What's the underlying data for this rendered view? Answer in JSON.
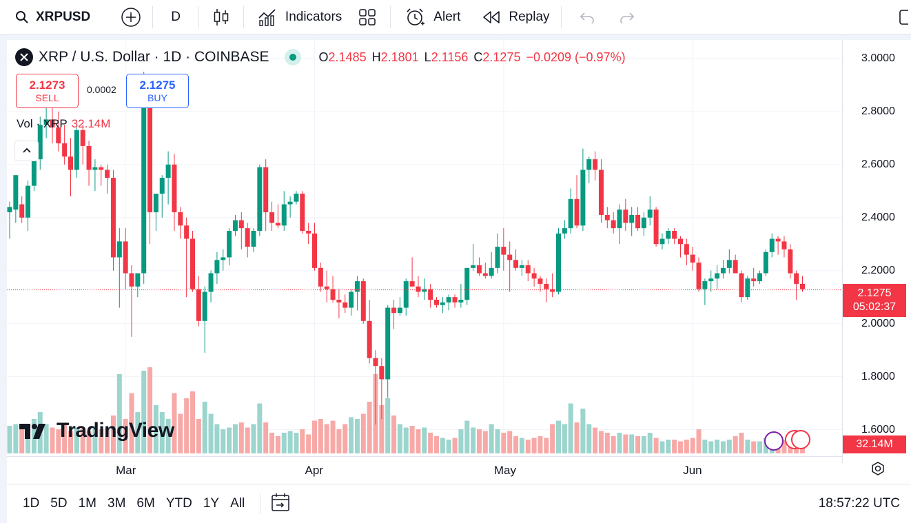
{
  "topbar": {
    "symbol": "XRPUSD",
    "interval": "D",
    "indicators_label": "Indicators",
    "alert_label": "Alert",
    "replay_label": "Replay"
  },
  "legend": {
    "title": "XRP / U.S. Dollar · 1D · COINBASE",
    "o_label": "O",
    "o": "2.1485",
    "h_label": "H",
    "h": "2.1801",
    "l_label": "L",
    "l": "2.1156",
    "c_label": "C",
    "c": "2.1275",
    "change": "−0.0209 (−0.97%)"
  },
  "trade": {
    "sell_price": "2.1273",
    "sell_label": "SELL",
    "spread": "0.0002",
    "buy_price": "2.1275",
    "buy_label": "BUY"
  },
  "volume": {
    "label": "Vol · XRP",
    "value": "32.14M"
  },
  "price_axis": {
    "labels": [
      "3.0000",
      "2.8000",
      "2.6000",
      "2.4000",
      "2.2000",
      "2.0000",
      "1.8000",
      "1.6000"
    ],
    "last_price": "2.1275",
    "countdown": "05:02:37",
    "volume_tag": "32.14M"
  },
  "time_axis": {
    "labels": [
      "Mar",
      "Apr",
      "May",
      "Jun"
    ]
  },
  "branding": "TradingView",
  "bottombar": {
    "ranges": [
      "1D",
      "5D",
      "1M",
      "3M",
      "6M",
      "YTD",
      "1Y",
      "All"
    ],
    "clock": "18:57:22 UTC"
  },
  "colors": {
    "up": "#089981",
    "down": "#f23645",
    "up_vol": "#9bd5cd",
    "down_vol": "#f7a9a7"
  },
  "chart_data": {
    "type": "candlestick",
    "ylim": [
      1.5,
      3.07
    ],
    "candles": [
      [
        2.42,
        2.46,
        2.32,
        2.44
      ],
      [
        2.43,
        2.56,
        2.38,
        2.56
      ],
      [
        2.45,
        2.48,
        2.38,
        2.4
      ],
      [
        2.4,
        2.54,
        2.35,
        2.52
      ],
      [
        2.52,
        2.66,
        2.5,
        2.62
      ],
      [
        2.62,
        2.78,
        2.58,
        2.75
      ],
      [
        2.75,
        2.82,
        2.7,
        2.77
      ],
      [
        2.77,
        2.82,
        2.68,
        2.74
      ],
      [
        2.74,
        2.8,
        2.65,
        2.68
      ],
      [
        2.68,
        2.75,
        2.6,
        2.63
      ],
      [
        2.63,
        2.7,
        2.48,
        2.58
      ],
      [
        2.58,
        2.74,
        2.55,
        2.73
      ],
      [
        2.73,
        2.75,
        2.6,
        2.67
      ],
      [
        2.67,
        2.69,
        2.52,
        2.58
      ],
      [
        2.58,
        2.62,
        2.5,
        2.59
      ],
      [
        2.59,
        2.6,
        2.52,
        2.58
      ],
      [
        2.58,
        2.6,
        2.49,
        2.55
      ],
      [
        2.55,
        2.58,
        2.2,
        2.25
      ],
      [
        2.25,
        2.36,
        2.06,
        2.31
      ],
      [
        2.31,
        2.36,
        2.13,
        2.19
      ],
      [
        2.19,
        2.22,
        1.95,
        2.14
      ],
      [
        2.14,
        2.18,
        2.1,
        2.19
      ],
      [
        2.19,
        2.95,
        2.15,
        2.93
      ],
      [
        2.93,
        2.94,
        2.3,
        2.42
      ],
      [
        2.42,
        2.48,
        2.35,
        2.49
      ],
      [
        2.49,
        2.56,
        2.4,
        2.55
      ],
      [
        2.55,
        2.65,
        2.45,
        2.6
      ],
      [
        2.6,
        2.64,
        2.35,
        2.42
      ],
      [
        2.42,
        2.44,
        2.32,
        2.37
      ],
      [
        2.37,
        2.4,
        2.1,
        2.32
      ],
      [
        2.32,
        2.35,
        2.12,
        2.13
      ],
      [
        2.13,
        2.18,
        1.99,
        2.01
      ],
      [
        2.01,
        2.14,
        1.89,
        2.12
      ],
      [
        2.12,
        2.2,
        2.08,
        2.19
      ],
      [
        2.19,
        2.27,
        2.15,
        2.24
      ],
      [
        2.24,
        2.28,
        2.2,
        2.25
      ],
      [
        2.25,
        2.36,
        2.22,
        2.35
      ],
      [
        2.35,
        2.41,
        2.33,
        2.39
      ],
      [
        2.39,
        2.42,
        2.28,
        2.36
      ],
      [
        2.36,
        2.38,
        2.25,
        2.29
      ],
      [
        2.29,
        2.36,
        2.27,
        2.35
      ],
      [
        2.35,
        2.6,
        2.33,
        2.59
      ],
      [
        2.59,
        2.62,
        2.35,
        2.42
      ],
      [
        2.42,
        2.46,
        2.35,
        2.38
      ],
      [
        2.38,
        2.45,
        2.36,
        2.37
      ],
      [
        2.37,
        2.5,
        2.35,
        2.45
      ],
      [
        2.45,
        2.48,
        2.4,
        2.46
      ],
      [
        2.46,
        2.5,
        2.45,
        2.49
      ],
      [
        2.49,
        2.5,
        2.34,
        2.35
      ],
      [
        2.35,
        2.38,
        2.3,
        2.34
      ],
      [
        2.34,
        2.38,
        2.2,
        2.21
      ],
      [
        2.21,
        2.23,
        2.12,
        2.14
      ],
      [
        2.14,
        2.2,
        2.08,
        2.13
      ],
      [
        2.13,
        2.18,
        2.08,
        2.09
      ],
      [
        2.09,
        2.13,
        2.02,
        2.08
      ],
      [
        2.08,
        2.11,
        2.04,
        2.06
      ],
      [
        2.06,
        2.13,
        2.03,
        2.12
      ],
      [
        2.12,
        2.18,
        2.05,
        2.16
      ],
      [
        2.16,
        2.17,
        2.0,
        2.01
      ],
      [
        2.01,
        2.09,
        1.85,
        1.87
      ],
      [
        1.87,
        1.9,
        1.62,
        1.84
      ],
      [
        1.84,
        1.87,
        1.64,
        1.79
      ],
      [
        1.79,
        2.07,
        1.72,
        2.06
      ],
      [
        2.06,
        2.09,
        1.98,
        2.04
      ],
      [
        2.04,
        2.1,
        2.03,
        2.06
      ],
      [
        2.06,
        2.17,
        2.03,
        2.16
      ],
      [
        2.16,
        2.25,
        2.14,
        2.14
      ],
      [
        2.14,
        2.18,
        2.1,
        2.12
      ],
      [
        2.12,
        2.17,
        2.09,
        2.13
      ],
      [
        2.13,
        2.15,
        2.06,
        2.09
      ],
      [
        2.09,
        2.1,
        2.06,
        2.07
      ],
      [
        2.07,
        2.1,
        2.04,
        2.08
      ],
      [
        2.08,
        2.11,
        2.05,
        2.1
      ],
      [
        2.1,
        2.11,
        2.06,
        2.08
      ],
      [
        2.08,
        2.15,
        2.06,
        2.09
      ],
      [
        2.09,
        2.21,
        2.07,
        2.21
      ],
      [
        2.21,
        2.3,
        2.2,
        2.22
      ],
      [
        2.22,
        2.25,
        2.18,
        2.19
      ],
      [
        2.19,
        2.23,
        2.17,
        2.18
      ],
      [
        2.18,
        2.27,
        2.17,
        2.21
      ],
      [
        2.21,
        2.34,
        2.19,
        2.29
      ],
      [
        2.29,
        2.36,
        2.2,
        2.26
      ],
      [
        2.26,
        2.31,
        2.12,
        2.24
      ],
      [
        2.24,
        2.28,
        2.2,
        2.21
      ],
      [
        2.21,
        2.24,
        2.18,
        2.22
      ],
      [
        2.22,
        2.24,
        2.16,
        2.19
      ],
      [
        2.19,
        2.21,
        2.14,
        2.17
      ],
      [
        2.17,
        2.18,
        2.12,
        2.15
      ],
      [
        2.15,
        2.17,
        2.08,
        2.13
      ],
      [
        2.13,
        2.19,
        2.1,
        2.12
      ],
      [
        2.12,
        2.36,
        2.11,
        2.34
      ],
      [
        2.34,
        2.39,
        2.32,
        2.36
      ],
      [
        2.36,
        2.51,
        2.34,
        2.47
      ],
      [
        2.47,
        2.56,
        2.36,
        2.37
      ],
      [
        2.37,
        2.66,
        2.35,
        2.58
      ],
      [
        2.58,
        2.63,
        2.53,
        2.62
      ],
      [
        2.62,
        2.65,
        2.54,
        2.58
      ],
      [
        2.58,
        2.62,
        2.38,
        2.41
      ],
      [
        2.41,
        2.44,
        2.36,
        2.39
      ],
      [
        2.39,
        2.42,
        2.34,
        2.36
      ],
      [
        2.36,
        2.45,
        2.3,
        2.43
      ],
      [
        2.43,
        2.47,
        2.35,
        2.38
      ],
      [
        2.38,
        2.44,
        2.33,
        2.41
      ],
      [
        2.41,
        2.44,
        2.35,
        2.36
      ],
      [
        2.36,
        2.42,
        2.33,
        2.4
      ],
      [
        2.4,
        2.48,
        2.37,
        2.43
      ],
      [
        2.43,
        2.44,
        2.29,
        2.3
      ],
      [
        2.3,
        2.34,
        2.28,
        2.32
      ],
      [
        2.32,
        2.36,
        2.3,
        2.35
      ],
      [
        2.35,
        2.36,
        2.3,
        2.32
      ],
      [
        2.32,
        2.33,
        2.25,
        2.3
      ],
      [
        2.3,
        2.32,
        2.22,
        2.26
      ],
      [
        2.26,
        2.29,
        2.2,
        2.23
      ],
      [
        2.23,
        2.25,
        2.12,
        2.13
      ],
      [
        2.13,
        2.17,
        2.07,
        2.16
      ],
      [
        2.16,
        2.2,
        2.12,
        2.17
      ],
      [
        2.17,
        2.22,
        2.13,
        2.19
      ],
      [
        2.19,
        2.24,
        2.17,
        2.21
      ],
      [
        2.21,
        2.28,
        2.19,
        2.24
      ],
      [
        2.24,
        2.26,
        2.19,
        2.19
      ],
      [
        2.19,
        2.2,
        2.08,
        2.1
      ],
      [
        2.1,
        2.18,
        2.09,
        2.17
      ],
      [
        2.17,
        2.21,
        2.14,
        2.16
      ],
      [
        2.16,
        2.2,
        2.15,
        2.19
      ],
      [
        2.19,
        2.28,
        2.18,
        2.27
      ],
      [
        2.27,
        2.34,
        2.25,
        2.32
      ],
      [
        2.32,
        2.33,
        2.26,
        2.31
      ],
      [
        2.31,
        2.33,
        2.25,
        2.28
      ],
      [
        2.28,
        2.3,
        2.17,
        2.19
      ],
      [
        2.19,
        2.2,
        2.09,
        2.15
      ],
      [
        2.15,
        2.18,
        2.12,
        2.13
      ]
    ],
    "volumes": [
      0.32,
      0.34,
      0.3,
      0.33,
      0.4,
      0.48,
      0.34,
      0.3,
      0.28,
      0.34,
      0.26,
      0.3,
      0.3,
      0.26,
      0.32,
      0.28,
      0.3,
      0.44,
      0.92,
      0.4,
      0.7,
      0.48,
      0.96,
      1.0,
      0.56,
      0.48,
      0.4,
      0.7,
      0.46,
      0.64,
      0.72,
      0.4,
      0.6,
      0.46,
      0.34,
      0.28,
      0.3,
      0.34,
      0.36,
      0.3,
      0.34,
      0.58,
      0.36,
      0.24,
      0.2,
      0.24,
      0.26,
      0.24,
      0.28,
      0.22,
      0.38,
      0.4,
      0.34,
      0.38,
      0.28,
      0.34,
      0.42,
      0.4,
      0.46,
      0.6,
      0.92,
      0.56,
      0.64,
      0.44,
      0.34,
      0.3,
      0.32,
      0.28,
      0.3,
      0.24,
      0.2,
      0.18,
      0.16,
      0.18,
      0.28,
      0.38,
      0.3,
      0.28,
      0.26,
      0.34,
      0.28,
      0.24,
      0.26,
      0.2,
      0.18,
      0.16,
      0.18,
      0.2,
      0.18,
      0.34,
      0.38,
      0.34,
      0.58,
      0.36,
      0.52,
      0.34,
      0.3,
      0.26,
      0.24,
      0.2,
      0.24,
      0.22,
      0.22,
      0.2,
      0.2,
      0.24,
      0.18,
      0.14,
      0.16,
      0.16,
      0.14,
      0.16,
      0.18,
      0.28,
      0.16,
      0.14,
      0.16,
      0.14,
      0.16,
      0.2,
      0.24,
      0.16,
      0.14,
      0.14,
      0.18,
      0.18,
      0.14,
      0.16,
      0.2,
      0.16,
      0.14
    ]
  }
}
